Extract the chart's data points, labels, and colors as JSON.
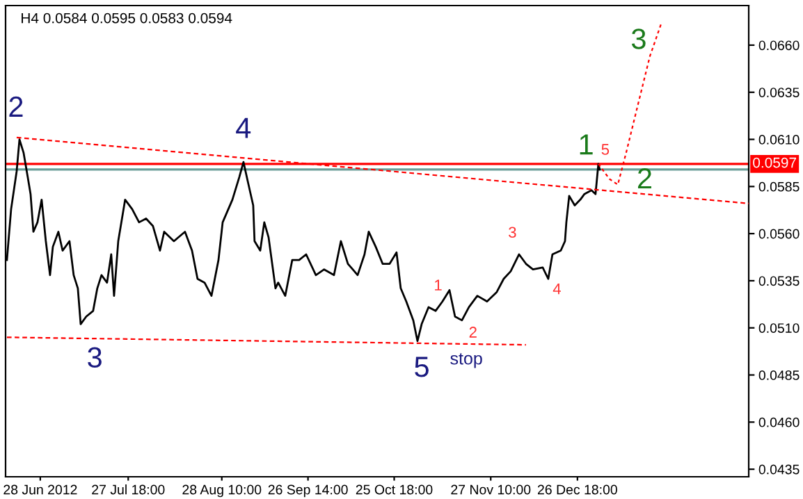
{
  "chart_data": {
    "type": "line",
    "title": "H4 0.0584 0.0595 0.0583 0.0594",
    "xlim": [
      "2012-06-16T06:00",
      "2013-02-22T17:00"
    ],
    "ylim": [
      0.0431,
      0.0681
    ],
    "xticks": [
      {
        "value": "2012-06-28T00:00",
        "label": "28 Jun 2012"
      },
      {
        "value": "2012-07-27T18:00",
        "label": "27 Jul 18:00"
      },
      {
        "value": "2012-08-28T10:00",
        "label": "28 Aug 10:00"
      },
      {
        "value": "2012-09-26T14:00",
        "label": "26 Sep 14:00"
      },
      {
        "value": "2012-10-25T18:00",
        "label": "25 Oct 18:00"
      },
      {
        "value": "2012-11-27T10:00",
        "label": "27 Nov 10:00"
      },
      {
        "value": "2012-12-26T18:00",
        "label": "26 Dec 18:00"
      }
    ],
    "yticks": [
      {
        "value": 0.0435,
        "label": "0.0435"
      },
      {
        "value": 0.046,
        "label": "0.0460"
      },
      {
        "value": 0.0485,
        "label": "0.0485"
      },
      {
        "value": 0.051,
        "label": "0.0510"
      },
      {
        "value": 0.0535,
        "label": "0.0535"
      },
      {
        "value": 0.056,
        "label": "0.0560"
      },
      {
        "value": 0.0585,
        "label": "0.0585"
      },
      {
        "value": 0.061,
        "label": "0.0610"
      },
      {
        "value": 0.0635,
        "label": "0.0635"
      },
      {
        "value": 0.066,
        "label": "0.0660"
      }
    ],
    "grid": false,
    "legend": false,
    "series": [
      {
        "color": "#000000",
        "line_style": "solid",
        "x": [
          "2012-06-16T17:00",
          "2012-06-18T03:00",
          "2012-06-20T00:00",
          "2012-06-20T23:00",
          "2012-06-22T08:00",
          "2012-06-23T18:00",
          "2012-06-24T17:00",
          "2012-06-25T16:00",
          "2012-06-27T01:00",
          "2012-06-28T11:00",
          "2012-06-29T21:00",
          "2012-07-01T07:00",
          "2012-07-02T06:00",
          "2012-07-04T03:00",
          "2012-07-05T13:00",
          "2012-07-07T21:00",
          "2012-07-09T07:00",
          "2012-07-10T17:00",
          "2012-07-11T16:00",
          "2012-07-13T13:00",
          "2012-07-15T21:00",
          "2012-07-17T07:00",
          "2012-07-18T17:00",
          "2012-07-20T14:00",
          "2012-07-22T00:00",
          "2012-07-22T23:00",
          "2012-07-24T09:00",
          "2012-07-26T17:00",
          "2012-07-29T02:00",
          "2012-07-31T10:00",
          "2012-08-02T19:00",
          "2012-08-05T03:00",
          "2012-08-07T12:00",
          "2012-08-08T22:00",
          "2012-08-12T05:00",
          "2012-08-15T23:00",
          "2012-08-18T08:00",
          "2012-08-20T05:00",
          "2012-08-22T14:00",
          "2012-08-24T22:00",
          "2012-08-27T07:00",
          "2012-08-28T17:00",
          "2012-09-01T00:00",
          "2012-09-03T08:00",
          "2012-09-04T18:00",
          "2012-09-06T04:00",
          "2012-09-08T01:00",
          "2012-09-08T12:00",
          "2012-09-10T10:00",
          "2012-09-11T19:00",
          "2012-09-13T06:00",
          "2012-09-15T14:00",
          "2012-09-16T12:00",
          "2012-09-18T21:00",
          "2012-09-21T06:00",
          "2012-09-23T14:00",
          "2012-09-25T23:00",
          "2012-09-29T06:00",
          "2012-10-02T01:00",
          "2012-10-05T09:00",
          "2012-10-07T17:00",
          "2012-10-10T02:00",
          "2012-10-13T09:00",
          "2012-10-15T17:00",
          "2012-10-17T03:00",
          "2012-10-19T12:00",
          "2012-10-21T20:00",
          "2012-10-24T05:00",
          "2012-10-26T13:00",
          "2012-10-27T23:00",
          "2012-10-29T20:00",
          "2012-11-01T05:00",
          "2012-11-02T15:00",
          "2012-11-04T01:00",
          "2012-11-06T09:00",
          "2012-11-08T18:00",
          "2012-11-11T02:00",
          "2012-11-13T11:00",
          "2012-11-15T08:00",
          "2012-11-17T16:00",
          "2012-11-20T01:00",
          "2012-11-22T21:00",
          "2012-11-26T04:00",
          "2012-11-29T11:00",
          "2012-12-01T19:00",
          "2012-12-04T04:00",
          "2012-12-07T00:00",
          "2012-12-09T08:00",
          "2012-12-11T17:00",
          "2012-12-15T00:00",
          "2012-12-16T21:00",
          "2012-12-18T07:00",
          "2012-12-19T17:00",
          "2012-12-21T03:00",
          "2012-12-22T13:00",
          "2012-12-23T00:00",
          "2012-12-23T23:00",
          "2012-12-25T20:00",
          "2012-12-27T17:00",
          "2012-12-29T03:00",
          "2012-12-31T12:00",
          "2013-01-01T21:00",
          "2013-01-02T20:00",
          "2013-01-03T07:00"
        ],
        "values": [
          0.0546,
          0.0573,
          0.0593,
          0.061,
          0.0603,
          0.059,
          0.0581,
          0.0561,
          0.0566,
          0.0578,
          0.0556,
          0.0538,
          0.0553,
          0.0561,
          0.0551,
          0.0556,
          0.0538,
          0.0531,
          0.0512,
          0.0516,
          0.0519,
          0.0531,
          0.0538,
          0.0534,
          0.0549,
          0.0527,
          0.0556,
          0.0578,
          0.0573,
          0.0566,
          0.0568,
          0.0564,
          0.0551,
          0.0561,
          0.0556,
          0.0561,
          0.0551,
          0.0536,
          0.0534,
          0.0527,
          0.0546,
          0.0566,
          0.0578,
          0.059,
          0.0598,
          0.0588,
          0.0575,
          0.0556,
          0.0551,
          0.0566,
          0.0558,
          0.0531,
          0.0534,
          0.0527,
          0.0546,
          0.0546,
          0.0549,
          0.0538,
          0.0541,
          0.0538,
          0.0556,
          0.0544,
          0.0538,
          0.0549,
          0.0561,
          0.0553,
          0.0544,
          0.0544,
          0.055,
          0.0531,
          0.0524,
          0.0514,
          0.0503,
          0.0512,
          0.0521,
          0.0519,
          0.0524,
          0.053,
          0.0516,
          0.0514,
          0.0521,
          0.0527,
          0.0524,
          0.0529,
          0.0536,
          0.054,
          0.0549,
          0.0544,
          0.0541,
          0.0542,
          0.0536,
          0.0549,
          0.055,
          0.0551,
          0.0556,
          0.0566,
          0.058,
          0.0575,
          0.0578,
          0.0581,
          0.0583,
          0.0581,
          0.0597,
          0.0594
        ]
      },
      {
        "color": "#ff0000",
        "line_style": "dashed",
        "x": [
          "2012-06-20T00:00",
          "2013-02-22T17:00"
        ],
        "values": [
          0.0611,
          0.0576
        ]
      },
      {
        "color": "#ff0000",
        "line_style": "dashed",
        "x": [
          "2012-06-16T17:00",
          "2012-12-09T08:00"
        ],
        "values": [
          0.0505,
          0.0501
        ]
      },
      {
        "color": "#ff0000",
        "line_style": "dotted",
        "x": [
          "2013-01-02T20:00",
          "2013-01-06T14:00",
          "2013-01-09T10:00",
          "2013-01-12T06:00",
          "2013-01-16T00:00",
          "2013-01-20T06:00",
          "2013-01-24T00:00"
        ],
        "values": [
          0.0597,
          0.0589,
          0.0586,
          0.0603,
          0.0627,
          0.0654,
          0.0671
        ]
      }
    ],
    "ref_lines": [
      {
        "axis": "y",
        "value": 0.0597,
        "label": "0.0597",
        "color": "#ff0000"
      },
      {
        "axis": "y",
        "value": 0.0594,
        "color": "#6a9e98"
      }
    ],
    "annotations": [
      "2",
      "3",
      "4",
      "5",
      "stop",
      "1",
      "2",
      "3",
      "4",
      "5",
      "1",
      "2",
      "3"
    ]
  }
}
